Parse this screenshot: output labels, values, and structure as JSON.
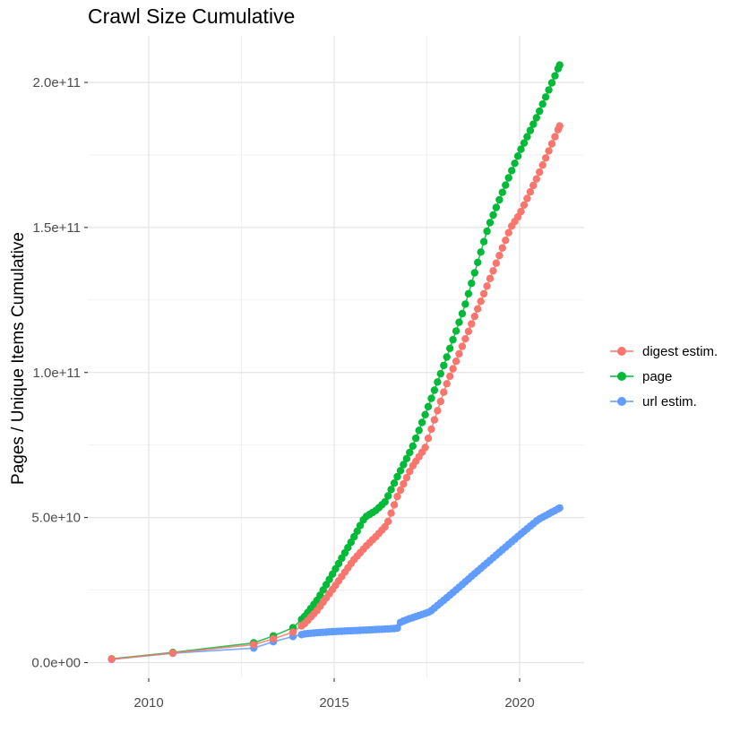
{
  "title": "Crawl Size Cumulative",
  "y_axis": {
    "title": "Pages / Unique Items Cumulative",
    "tick_labels": [
      "2.0e+11",
      "1.5e+11",
      "1.0e+11",
      "5.0e+10",
      "0.0e+00"
    ],
    "tick_values_e9": [
      200,
      150,
      100,
      50,
      0
    ],
    "minor_values_e9": [
      175,
      125,
      75,
      25
    ]
  },
  "x_axis": {
    "tick_labels": [
      "2010",
      "2015",
      "2020"
    ],
    "tick_values": [
      2010,
      2015,
      2020
    ],
    "minor_values": [
      2012.5,
      2017.5
    ]
  },
  "legend": {
    "items": [
      {
        "label": "digest estim.",
        "color": "#F8766D"
      },
      {
        "label": "page",
        "color": "#00BA38"
      },
      {
        "label": "url estim.",
        "color": "#619CFF"
      }
    ]
  },
  "colors": {
    "background": "#FFFFFF",
    "grid_major": "#E4E4E4",
    "grid_minor": "#F1F1F1",
    "tick_mark": "#333333",
    "axis_text": "#4D4D4D"
  },
  "chart_data": {
    "type": "scatter",
    "title": "Crawl Size Cumulative",
    "xlabel": "",
    "ylabel": "Pages / Unique Items Cumulative",
    "x_unit": "calendar year (decimal)",
    "y_unit": "cumulative count; values stored as billions (1e9)",
    "xlim": [
      2008.4,
      2021.75
    ],
    "ylim_e9": [
      -5.5,
      216
    ],
    "grid": true,
    "legend_position": "right-center",
    "points_cadence": "sparse crawls 2009-2013, then ~monthly dots 2014-2021 along the anchor curve",
    "sample_dates_sparse": [
      2009.0,
      2010.65,
      2012.83,
      2013.36,
      2013.89
    ],
    "monthly_from": 2014.12,
    "monthly_to": 2021.08,
    "series": [
      {
        "name": "digest estim.",
        "color": "#F8766D",
        "anchors": [
          [
            2009.0,
            1.2
          ],
          [
            2010.65,
            3.3
          ],
          [
            2012.83,
            6.2
          ],
          [
            2013.36,
            8.2
          ],
          [
            2013.89,
            10.5
          ],
          [
            2014.21,
            13.5
          ],
          [
            2014.54,
            18
          ],
          [
            2015.0,
            26
          ],
          [
            2015.5,
            35
          ],
          [
            2015.85,
            40
          ],
          [
            2016.13,
            43.5
          ],
          [
            2016.42,
            47.5
          ],
          [
            2016.71,
            57.5
          ],
          [
            2017.1,
            67.5
          ],
          [
            2017.45,
            74
          ],
          [
            2018.0,
            95
          ],
          [
            2018.55,
            112
          ],
          [
            2019.0,
            126
          ],
          [
            2019.76,
            150
          ],
          [
            2020.0,
            154.5
          ],
          [
            2020.5,
            168
          ],
          [
            2021.08,
            185
          ]
        ]
      },
      {
        "name": "page",
        "color": "#00BA38",
        "anchors": [
          [
            2009.0,
            1.3
          ],
          [
            2010.65,
            3.5
          ],
          [
            2012.83,
            6.8
          ],
          [
            2013.36,
            9.2
          ],
          [
            2013.89,
            12
          ],
          [
            2014.21,
            16
          ],
          [
            2014.54,
            21.5
          ],
          [
            2015.0,
            31.5
          ],
          [
            2015.5,
            42.5
          ],
          [
            2015.82,
            50
          ],
          [
            2016.13,
            52.5
          ],
          [
            2016.38,
            55.5
          ],
          [
            2016.7,
            64
          ],
          [
            2017.1,
            74
          ],
          [
            2017.5,
            87
          ],
          [
            2018.0,
            104
          ],
          [
            2018.5,
            122
          ],
          [
            2019.15,
            150
          ],
          [
            2019.5,
            161
          ],
          [
            2020.0,
            176
          ],
          [
            2020.5,
            189
          ],
          [
            2021.08,
            206
          ]
        ]
      },
      {
        "name": "url estim.",
        "color": "#619CFF",
        "anchors": [
          [
            2009.0,
            1.1
          ],
          [
            2010.65,
            3.2
          ],
          [
            2012.83,
            5.0
          ],
          [
            2013.36,
            7.2
          ],
          [
            2013.89,
            9.0
          ],
          [
            2014.21,
            9.9
          ],
          [
            2014.54,
            10.3
          ],
          [
            2015.0,
            10.7
          ],
          [
            2015.5,
            11.0
          ],
          [
            2016.0,
            11.3
          ],
          [
            2016.42,
            11.6
          ],
          [
            2016.7,
            11.8
          ],
          [
            2016.79,
            13.9
          ],
          [
            2017.0,
            15.0
          ],
          [
            2017.58,
            17.5
          ],
          [
            2018.19,
            24
          ],
          [
            2018.79,
            30.7
          ],
          [
            2019.5,
            38.5
          ],
          [
            2020.0,
            44
          ],
          [
            2020.5,
            49.3
          ],
          [
            2021.08,
            53.3
          ]
        ]
      }
    ],
    "final_values_e9": {
      "page": 206,
      "digest_estim": 185,
      "url_estim": 53.3
    }
  }
}
